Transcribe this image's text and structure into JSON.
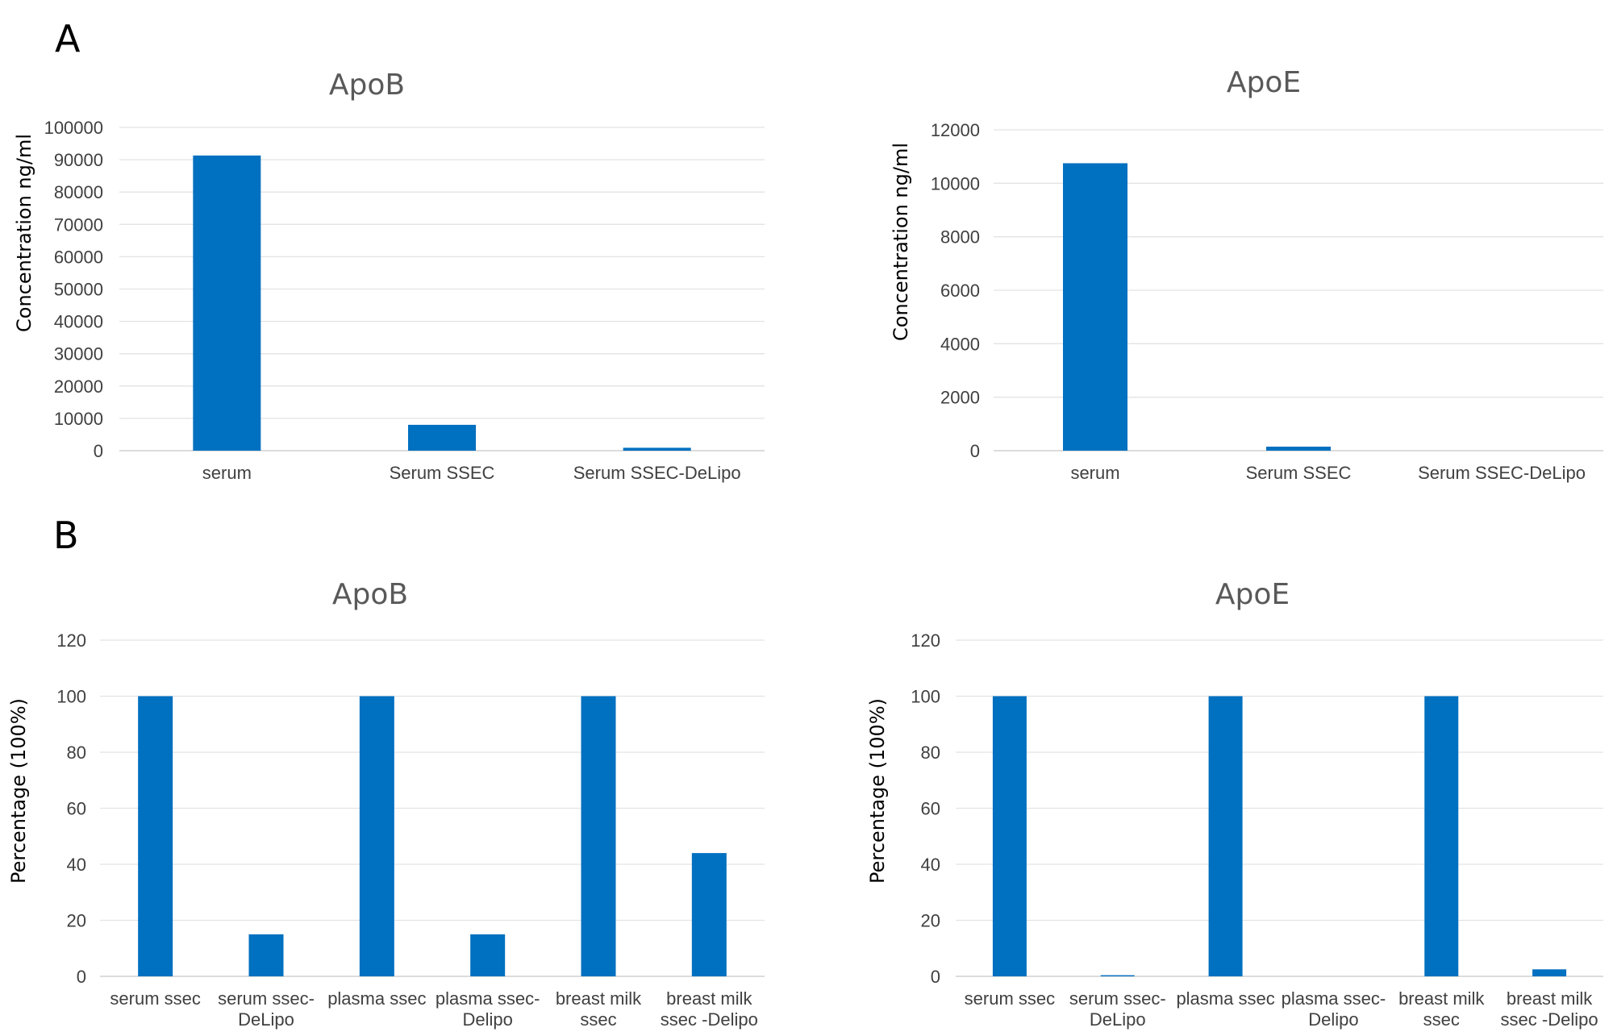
{
  "panels": [
    "A",
    "B"
  ],
  "chart_data": [
    {
      "type": "bar",
      "panel": "A",
      "title": "ApoB",
      "ylabel": "Concentration ng/ml",
      "xlabel": "",
      "categories": [
        [
          "serum"
        ],
        [
          "Serum SSEC"
        ],
        [
          "Serum SSEC-DeLipo"
        ]
      ],
      "values": [
        91300,
        8000,
        900
      ],
      "ylim": [
        0,
        100000
      ],
      "yticks": [
        0,
        10000,
        20000,
        30000,
        40000,
        50000,
        60000,
        70000,
        80000,
        90000,
        100000
      ],
      "grid": true,
      "color": "#0070C0"
    },
    {
      "type": "bar",
      "panel": "A",
      "title": "ApoE",
      "ylabel": "Concentration ng/ml",
      "xlabel": "",
      "categories": [
        [
          "serum"
        ],
        [
          "Serum SSEC"
        ],
        [
          "Serum SSEC-DeLipo"
        ]
      ],
      "values": [
        10750,
        150,
        0
      ],
      "ylim": [
        0,
        12000
      ],
      "yticks": [
        0,
        2000,
        4000,
        6000,
        8000,
        10000,
        12000
      ],
      "grid": true,
      "color": "#0070C0"
    },
    {
      "type": "bar",
      "panel": "B",
      "title": "ApoB",
      "ylabel": "Percentage (100%)",
      "xlabel": "",
      "categories": [
        [
          "serum ssec"
        ],
        [
          "serum ssec-",
          "DeLipo"
        ],
        [
          "plasma ssec"
        ],
        [
          "plasma ssec-",
          "Delipo"
        ],
        [
          "breast milk",
          "ssec"
        ],
        [
          "breast milk",
          "ssec -Delipo"
        ]
      ],
      "values": [
        100,
        15,
        100,
        15,
        100,
        44
      ],
      "ylim": [
        0,
        120
      ],
      "yticks": [
        0,
        20,
        40,
        60,
        80,
        100,
        120
      ],
      "grid": true,
      "color": "#0070C0"
    },
    {
      "type": "bar",
      "panel": "B",
      "title": "ApoE",
      "ylabel": "Percentage (100%)",
      "xlabel": "",
      "categories": [
        [
          "serum ssec"
        ],
        [
          "serum ssec-",
          "DeLipo"
        ],
        [
          "plasma ssec"
        ],
        [
          "plasma ssec-",
          "Delipo"
        ],
        [
          "breast milk",
          "ssec"
        ],
        [
          "breast milk",
          "ssec -Delipo"
        ]
      ],
      "values": [
        100,
        0.4,
        100,
        0,
        100,
        2.5
      ],
      "ylim": [
        0,
        120
      ],
      "yticks": [
        0,
        20,
        40,
        60,
        80,
        100,
        120
      ],
      "grid": true,
      "color": "#0070C0"
    }
  ]
}
